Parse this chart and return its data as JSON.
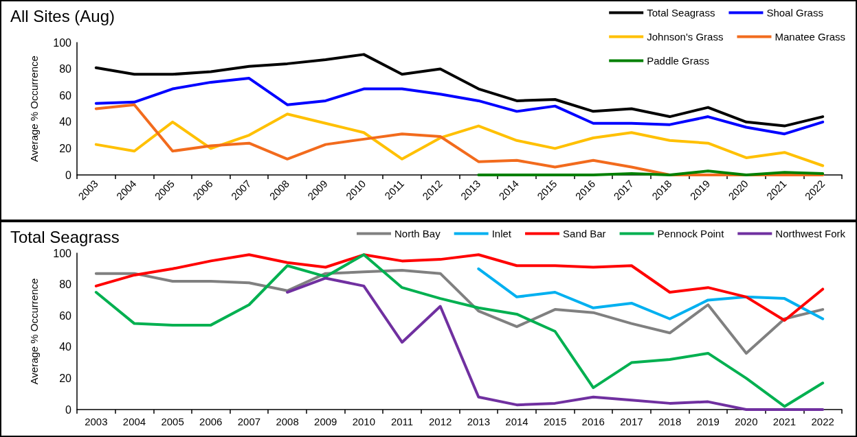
{
  "chart_data": [
    {
      "type": "line",
      "title": "All Sites (Aug)",
      "ylabel": "Average % Occurrence",
      "categories": [
        "2003",
        "2004",
        "2005",
        "2006",
        "2007",
        "2008",
        "2009",
        "2010",
        "2011",
        "2012",
        "2013",
        "2014",
        "2015",
        "2016",
        "2017",
        "2018",
        "2019",
        "2020",
        "2021",
        "2022"
      ],
      "ylim": [
        0,
        100
      ],
      "yticks": [
        0,
        20,
        40,
        60,
        80,
        100
      ],
      "grid": false,
      "legend": "top right",
      "series": [
        {
          "name": "Total Seagrass",
          "color": "#000000",
          "values": [
            81,
            76,
            76,
            78,
            82,
            84,
            87,
            91,
            76,
            80,
            65,
            56,
            57,
            48,
            50,
            44,
            51,
            40,
            37,
            44
          ]
        },
        {
          "name": "Shoal Grass",
          "color": "#0000ff",
          "values": [
            54,
            55,
            65,
            70,
            73,
            53,
            56,
            65,
            65,
            61,
            56,
            48,
            52,
            39,
            39,
            38,
            44,
            36,
            31,
            40
          ]
        },
        {
          "name": "Johnson's Grass",
          "color": "#ffc000",
          "values": [
            23,
            18,
            40,
            20,
            30,
            46,
            39,
            32,
            12,
            28,
            37,
            26,
            20,
            28,
            32,
            26,
            24,
            13,
            17,
            7
          ]
        },
        {
          "name": "Manatee Grass",
          "color": "#f26b1d",
          "values": [
            50,
            53,
            18,
            22,
            24,
            12,
            23,
            27,
            31,
            29,
            10,
            11,
            6,
            11,
            6,
            0,
            0,
            0,
            0,
            0
          ]
        },
        {
          "name": "Paddle Grass",
          "color": "#008000",
          "values": [
            null,
            null,
            null,
            null,
            null,
            null,
            null,
            null,
            null,
            null,
            0,
            0,
            0,
            0,
            1,
            0,
            3,
            0,
            2,
            1
          ]
        }
      ]
    },
    {
      "type": "line",
      "title": "Total Seagrass",
      "ylabel": "Average % Occurrence",
      "categories": [
        "2003",
        "2004",
        "2005",
        "2006",
        "2007",
        "2008",
        "2009",
        "2010",
        "2011",
        "2012",
        "2013",
        "2014",
        "2015",
        "2016",
        "2017",
        "2018",
        "2019",
        "2020",
        "2021",
        "2022"
      ],
      "ylim": [
        0,
        100
      ],
      "yticks": [
        0,
        20,
        40,
        60,
        80,
        100
      ],
      "grid": false,
      "legend": "top right",
      "series": [
        {
          "name": "North Bay",
          "color": "#808080",
          "values": [
            87,
            87,
            82,
            82,
            81,
            76,
            87,
            88,
            89,
            87,
            63,
            53,
            64,
            62,
            55,
            49,
            67,
            36,
            58,
            64
          ]
        },
        {
          "name": "Inlet",
          "color": "#00b0f0",
          "values": [
            null,
            null,
            null,
            null,
            null,
            null,
            null,
            null,
            null,
            null,
            90,
            72,
            75,
            65,
            68,
            58,
            70,
            72,
            71,
            58
          ]
        },
        {
          "name": "Sand Bar",
          "color": "#ff0000",
          "values": [
            79,
            86,
            90,
            95,
            99,
            94,
            91,
            99,
            95,
            96,
            99,
            92,
            92,
            91,
            92,
            75,
            78,
            72,
            57,
            77
          ]
        },
        {
          "name": "Pennock Point",
          "color": "#00b050",
          "values": [
            75,
            55,
            54,
            54,
            67,
            92,
            85,
            99,
            78,
            71,
            65,
            61,
            50,
            14,
            30,
            32,
            36,
            20,
            2,
            17
          ]
        },
        {
          "name": "Northwest Fork",
          "color": "#7030a0",
          "values": [
            null,
            null,
            null,
            null,
            null,
            75,
            84,
            79,
            43,
            66,
            8,
            3,
            4,
            8,
            6,
            4,
            5,
            0,
            0,
            0
          ]
        }
      ]
    }
  ]
}
